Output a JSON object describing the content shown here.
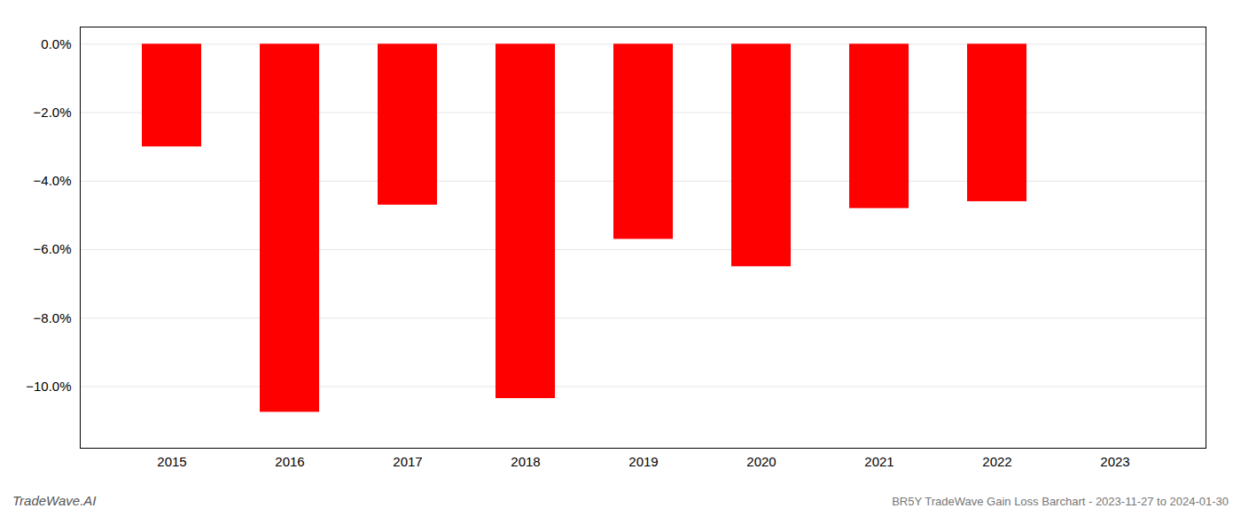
{
  "chart_data": {
    "type": "bar",
    "categories": [
      "2015",
      "2016",
      "2017",
      "2018",
      "2019",
      "2020",
      "2021",
      "2022",
      "2023"
    ],
    "values": [
      -3.0,
      -10.75,
      -4.7,
      -10.35,
      -5.7,
      -6.5,
      -4.8,
      -4.6,
      null
    ],
    "color": "#ff0000",
    "ylim": [
      -11.8,
      0.5
    ],
    "yticks": [
      {
        "value": 0.0,
        "label": "0.0%"
      },
      {
        "value": -2.0,
        "label": "−2.0%"
      },
      {
        "value": -4.0,
        "label": "−4.0%"
      },
      {
        "value": -6.0,
        "label": "−6.0%"
      },
      {
        "value": -8.0,
        "label": "−8.0%"
      },
      {
        "value": -10.0,
        "label": "−10.0%"
      }
    ],
    "grid": true,
    "annotations": [
      "TradeWave.AI",
      "BR5Y TradeWave Gain Loss Barchart - 2023-11-27 to 2024-01-30"
    ]
  }
}
